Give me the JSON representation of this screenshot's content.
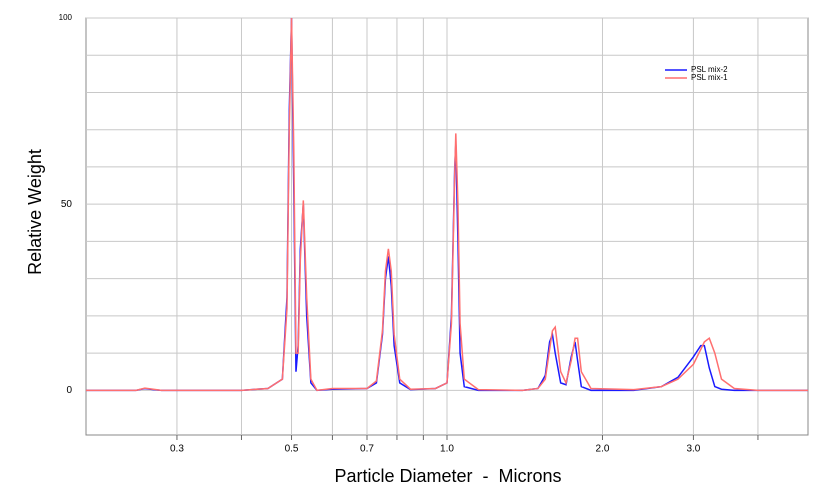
{
  "chart_data": {
    "type": "line",
    "xlabel": "Particle Diameter  -  Microns",
    "ylabel": "Relative Weight",
    "xscale": "log",
    "xlim": [
      0.2,
      5
    ],
    "ylim": [
      -12,
      100
    ],
    "xticks": [
      {
        "value": 0.3,
        "label": "0.3"
      },
      {
        "value": 0.5,
        "label": "0.5"
      },
      {
        "value": 0.7,
        "label": "0.7"
      },
      {
        "value": 1,
        "label": "1.0"
      },
      {
        "value": 2,
        "label": "2.0"
      },
      {
        "value": 3,
        "label": "3.0"
      }
    ],
    "xminor": [
      0.4,
      0.6,
      0.8,
      0.9,
      4
    ],
    "yticks": [
      0,
      50,
      100
    ],
    "yminor": [
      10,
      20,
      30,
      40,
      60,
      70,
      80,
      90
    ],
    "grid": true,
    "legend": "upper right",
    "x": [
      0.2,
      0.25,
      0.26,
      0.27,
      0.28,
      0.3,
      0.4,
      0.45,
      0.48,
      0.49,
      0.495,
      0.5,
      0.505,
      0.51,
      0.515,
      0.52,
      0.527,
      0.535,
      0.545,
      0.56,
      0.6,
      0.7,
      0.73,
      0.75,
      0.76,
      0.77,
      0.78,
      0.79,
      0.81,
      0.85,
      0.95,
      1.0,
      1.02,
      1.035,
      1.04,
      1.05,
      1.06,
      1.08,
      1.15,
      1.4,
      1.5,
      1.55,
      1.58,
      1.6,
      1.62,
      1.66,
      1.7,
      1.74,
      1.77,
      1.79,
      1.82,
      1.9,
      2.3,
      2.6,
      2.8,
      3.0,
      3.1,
      3.15,
      3.22,
      3.3,
      3.4,
      3.6,
      4.0,
      5.0
    ],
    "series": [
      {
        "name": "PSL mix-2",
        "color": "#1a1aff",
        "values": [
          0,
          0,
          0.5,
          0.2,
          0,
          0,
          0,
          0.5,
          3,
          25,
          75,
          100,
          55,
          5,
          12,
          38,
          50,
          20,
          2,
          0,
          0.3,
          0.5,
          2,
          15,
          30,
          36,
          28,
          12,
          2,
          0.2,
          0.5,
          2,
          20,
          60,
          66,
          40,
          10,
          1,
          0,
          0,
          0.5,
          4,
          13,
          15,
          10,
          2,
          1.5,
          9,
          13,
          8,
          1,
          0,
          0,
          1,
          3.5,
          9,
          12,
          12,
          6,
          1,
          0.3,
          0,
          0,
          0
        ]
      },
      {
        "name": "PSL mix-1",
        "color": "#ff6f6f",
        "values": [
          0,
          0,
          0.6,
          0.3,
          0,
          0,
          0,
          0.5,
          3,
          22,
          70,
          100,
          65,
          10,
          10,
          35,
          51,
          25,
          3,
          0,
          0.5,
          0.5,
          2.5,
          16,
          32,
          38,
          32,
          15,
          3,
          0.3,
          0.5,
          2,
          18,
          58,
          69,
          50,
          18,
          3,
          0.2,
          0,
          0.5,
          3,
          11,
          16,
          17,
          5,
          2,
          8,
          14,
          14,
          5,
          0.5,
          0.2,
          1,
          3,
          7,
          11,
          13,
          14,
          10,
          3,
          0.5,
          0,
          0
        ]
      }
    ]
  }
}
